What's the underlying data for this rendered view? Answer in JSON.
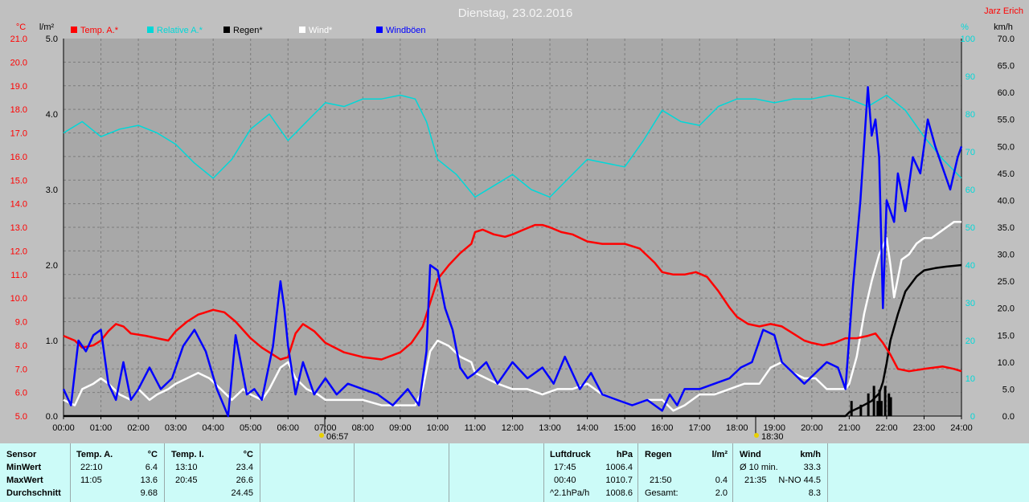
{
  "chart_data": {
    "type": "line",
    "title": "Dienstag, 23.02.2016",
    "author": "Jarz Erich",
    "colors": {
      "temp": "#ff0000",
      "pressure": "#00d8d8",
      "rain": "#000000",
      "wind": "#ffffff",
      "gust": "#0000ff",
      "plot_bg": "#a8a8a8",
      "grid": "#808080"
    },
    "left_axis_temp": {
      "unit": "°C",
      "min": 5.0,
      "max": 21.0,
      "ticks": [
        "5.0",
        "6.0",
        "7.0",
        "8.0",
        "9.0",
        "10.0",
        "11.0",
        "12.0",
        "13.0",
        "14.0",
        "15.0",
        "16.0",
        "17.0",
        "18.0",
        "19.0",
        "20.0",
        "21.0"
      ]
    },
    "left_axis_rain": {
      "unit": "l/m²",
      "min": 0,
      "max": 5.0,
      "ticks": [
        "0.0",
        "1.0",
        "2.0",
        "3.0",
        "4.0",
        "5.0"
      ]
    },
    "right_axis_pressure": {
      "unit": "%",
      "min": 0,
      "max": 100,
      "ticks": [
        "0",
        "10",
        "20",
        "30",
        "40",
        "50",
        "60",
        "70",
        "80",
        "90",
        "100"
      ]
    },
    "right_axis_wind": {
      "unit": "km/h",
      "min": 0,
      "max": 70,
      "ticks": [
        "0.0",
        "5.0",
        "10.0",
        "15.0",
        "20.0",
        "25.0",
        "30.0",
        "35.0",
        "40.0",
        "45.0",
        "50.0",
        "55.0",
        "60.0",
        "65.0",
        "70.0"
      ]
    },
    "x_ticks": [
      "00:00",
      "01:00",
      "02:00",
      "03:00",
      "04:00",
      "05:00",
      "06:00",
      "07:00",
      "08:00",
      "09:00",
      "10:00",
      "11:00",
      "12:00",
      "13:00",
      "14:00",
      "15:00",
      "16:00",
      "17:00",
      "18:00",
      "19:00",
      "20:00",
      "21:00",
      "22:00",
      "23:00",
      "24:00"
    ],
    "sunrise": "06:57",
    "sunset": "18:30",
    "legend": [
      {
        "key": "temp",
        "label": "Temp. A.*"
      },
      {
        "key": "pressure",
        "label": "Relative A.*"
      },
      {
        "key": "rain",
        "label": "Regen*"
      },
      {
        "key": "wind",
        "label": "Wind*"
      },
      {
        "key": "gust",
        "label": "Windböen"
      }
    ],
    "series": [
      {
        "name": "Temp. A.*",
        "key": "temp",
        "axis": "temp",
        "x": [
          0,
          0.3,
          0.5,
          0.8,
          1.0,
          1.2,
          1.4,
          1.6,
          1.8,
          2.2,
          2.5,
          2.8,
          3.0,
          3.3,
          3.6,
          4.0,
          4.3,
          4.6,
          5.0,
          5.3,
          5.6,
          5.8,
          6.0,
          6.2,
          6.4,
          6.7,
          7.0,
          7.5,
          8.0,
          8.5,
          9.0,
          9.3,
          9.6,
          9.8,
          10.0,
          10.3,
          10.6,
          10.9,
          11.0,
          11.2,
          11.5,
          11.8,
          12.0,
          12.3,
          12.6,
          12.8,
          13.0,
          13.3,
          13.6,
          14.0,
          14.4,
          14.8,
          15.0,
          15.4,
          15.8,
          16.0,
          16.3,
          16.6,
          16.9,
          17.2,
          17.5,
          17.8,
          18.0,
          18.3,
          18.6,
          18.9,
          19.2,
          19.5,
          19.8,
          20.0,
          20.3,
          20.6,
          20.9,
          21.2,
          21.5,
          21.7,
          21.9,
          22.1,
          22.3,
          22.6,
          23.0,
          23.5,
          23.8,
          24.0
        ],
        "values": [
          8.4,
          8.2,
          7.9,
          8.0,
          8.2,
          8.6,
          8.9,
          8.8,
          8.5,
          8.4,
          8.3,
          8.2,
          8.6,
          9.0,
          9.3,
          9.5,
          9.4,
          9.0,
          8.3,
          7.9,
          7.6,
          7.4,
          7.5,
          8.5,
          8.9,
          8.6,
          8.1,
          7.7,
          7.5,
          7.4,
          7.7,
          8.1,
          8.8,
          9.8,
          10.8,
          11.4,
          11.9,
          12.3,
          12.8,
          12.9,
          12.7,
          12.6,
          12.7,
          12.9,
          13.1,
          13.1,
          13.0,
          12.8,
          12.7,
          12.4,
          12.3,
          12.3,
          12.3,
          12.1,
          11.5,
          11.1,
          11.0,
          11.0,
          11.1,
          10.9,
          10.3,
          9.6,
          9.2,
          8.9,
          8.8,
          8.9,
          8.8,
          8.5,
          8.2,
          8.1,
          8.0,
          8.1,
          8.3,
          8.3,
          8.4,
          8.5,
          8.1,
          7.6,
          7.0,
          6.9,
          7.0,
          7.1,
          7.0,
          6.9
        ]
      },
      {
        "name": "Relative A.*",
        "key": "pressure",
        "axis": "pressure",
        "x": [
          0,
          0.5,
          1.0,
          1.5,
          2.0,
          2.5,
          3.0,
          3.5,
          4.0,
          4.5,
          5.0,
          5.5,
          6.0,
          6.5,
          7.0,
          7.5,
          8.0,
          8.5,
          9.0,
          9.4,
          9.7,
          10.0,
          10.5,
          11.0,
          11.5,
          12.0,
          12.5,
          13.0,
          13.5,
          14.0,
          14.5,
          15.0,
          15.5,
          16.0,
          16.5,
          17.0,
          17.5,
          18.0,
          18.5,
          19.0,
          19.5,
          20.0,
          20.5,
          21.0,
          21.5,
          22.0,
          22.5,
          23.0,
          23.5,
          24.0
        ],
        "values": [
          75,
          78,
          74,
          76,
          77,
          75,
          72,
          67,
          63,
          68,
          76,
          80,
          73,
          78,
          83,
          82,
          84,
          84,
          85,
          84,
          78,
          68,
          64,
          58,
          61,
          64,
          60,
          58,
          63,
          68,
          67,
          66,
          73,
          81,
          78,
          77,
          82,
          84,
          84,
          83,
          84,
          84,
          85,
          84,
          82,
          85,
          81,
          74,
          68,
          63
        ]
      },
      {
        "name": "Regen*",
        "key": "rain",
        "axis": "rain",
        "x": [
          0,
          20.9,
          21.0,
          21.3,
          21.6,
          21.8,
          21.9,
          22.0,
          22.1,
          22.3,
          22.5,
          22.8,
          23.0,
          23.3,
          23.6,
          24.0
        ],
        "values": [
          0,
          0,
          0.05,
          0.12,
          0.2,
          0.3,
          0.45,
          0.7,
          1.0,
          1.35,
          1.65,
          1.85,
          1.93,
          1.96,
          1.98,
          2.0
        ]
      },
      {
        "name": "Wind*",
        "key": "wind",
        "axis": "wind",
        "x": [
          0,
          0.3,
          0.5,
          0.8,
          1.0,
          1.2,
          1.5,
          1.8,
          2.0,
          2.3,
          2.5,
          2.8,
          3.0,
          3.3,
          3.6,
          3.9,
          4.2,
          4.5,
          4.8,
          5.0,
          5.3,
          5.5,
          5.8,
          6.0,
          6.2,
          6.5,
          6.8,
          7.0,
          7.5,
          8.0,
          8.5,
          9.0,
          9.4,
          9.6,
          9.8,
          10.0,
          10.3,
          10.6,
          10.9,
          11.0,
          11.3,
          11.6,
          12.0,
          12.4,
          12.8,
          13.2,
          13.6,
          14.0,
          14.4,
          14.8,
          15.2,
          15.6,
          16.0,
          16.3,
          16.6,
          17.0,
          17.4,
          17.8,
          18.2,
          18.6,
          18.9,
          19.2,
          19.5,
          19.8,
          20.1,
          20.4,
          20.7,
          20.9,
          21.0,
          21.2,
          21.4,
          21.6,
          21.8,
          22.0,
          22.1,
          22.2,
          22.4,
          22.6,
          22.8,
          23.0,
          23.2,
          23.4,
          23.6,
          23.8,
          24.0
        ],
        "values": [
          3,
          2,
          5,
          6,
          7,
          6,
          4,
          3,
          5,
          3,
          4,
          5,
          6,
          7,
          8,
          7,
          5,
          3,
          5,
          4,
          3,
          5,
          9,
          10,
          7,
          5,
          4,
          3,
          3,
          3,
          2,
          2,
          2,
          5,
          12,
          14,
          13,
          11,
          10,
          8,
          7,
          6,
          5,
          5,
          4,
          5,
          5,
          6,
          4,
          3,
          2,
          3,
          3,
          1,
          2,
          4,
          4,
          5,
          6,
          6,
          9,
          10,
          8,
          7,
          7,
          5,
          5,
          5,
          6,
          11,
          19,
          25,
          30,
          33,
          28,
          22,
          29,
          30,
          32,
          33,
          33,
          34,
          35,
          36,
          36
        ]
      },
      {
        "name": "Windböen",
        "key": "gust",
        "axis": "gust",
        "x": [
          0,
          0.2,
          0.4,
          0.6,
          0.8,
          1.0,
          1.2,
          1.4,
          1.6,
          1.8,
          2.0,
          2.3,
          2.6,
          2.9,
          3.2,
          3.5,
          3.8,
          4.1,
          4.4,
          4.6,
          4.9,
          5.1,
          5.3,
          5.6,
          5.8,
          5.9,
          6.0,
          6.2,
          6.4,
          6.7,
          7.0,
          7.3,
          7.6,
          8.0,
          8.4,
          8.8,
          9.2,
          9.5,
          9.7,
          9.8,
          10.0,
          10.2,
          10.4,
          10.6,
          10.8,
          11.0,
          11.3,
          11.6,
          12.0,
          12.4,
          12.8,
          13.1,
          13.4,
          13.8,
          14.1,
          14.4,
          14.8,
          15.2,
          15.6,
          16.0,
          16.2,
          16.4,
          16.6,
          17.0,
          17.4,
          17.8,
          18.1,
          18.4,
          18.7,
          19.0,
          19.2,
          19.5,
          19.8,
          20.1,
          20.4,
          20.7,
          20.9,
          21.1,
          21.3,
          21.5,
          21.6,
          21.7,
          21.8,
          21.9,
          22.0,
          22.1,
          22.2,
          22.3,
          22.5,
          22.7,
          22.9,
          23.1,
          23.3,
          23.5,
          23.7,
          23.9,
          24.0
        ],
        "values": [
          5,
          2,
          14,
          12,
          15,
          16,
          6,
          3,
          10,
          3,
          5,
          9,
          5,
          7,
          13,
          16,
          12,
          5,
          0,
          15,
          4,
          5,
          3,
          13,
          25,
          20,
          13,
          4,
          10,
          4,
          7,
          4,
          6,
          5,
          4,
          2,
          5,
          2,
          12,
          28,
          27,
          20,
          16,
          9,
          7,
          8,
          10,
          6,
          10,
          7,
          9,
          6,
          11,
          5,
          8,
          4,
          3,
          2,
          3,
          1,
          4,
          2,
          5,
          5,
          6,
          7,
          9,
          10,
          16,
          15,
          10,
          8,
          6,
          8,
          10,
          9,
          5,
          24,
          40,
          61,
          52,
          55,
          48,
          20,
          40,
          38,
          36,
          45,
          38,
          48,
          45,
          55,
          50,
          46,
          42,
          48,
          50
        ]
      }
    ],
    "rain_bars": {
      "x": [
        21.05,
        21.3,
        21.5,
        21.65,
        21.75,
        21.8,
        21.85,
        21.95,
        22.05,
        22.1
      ],
      "values": [
        0.2,
        0.15,
        0.3,
        0.4,
        0.2,
        0.35,
        0.2,
        0.4,
        0.3,
        0.25
      ]
    }
  },
  "table": {
    "sensor": {
      "header": "Sensor",
      "rows": [
        "MinWert",
        "MaxWert",
        "Durchschnitt"
      ]
    },
    "temp_a": {
      "header": "Temp. A.",
      "unit": "°C",
      "times": [
        "22:10",
        "11:05",
        ""
      ],
      "values": [
        "6.4",
        "13.6",
        "9.68"
      ]
    },
    "temp_i": {
      "header": "Temp. I.",
      "unit": "°C",
      "times": [
        "13:10",
        "20:45",
        ""
      ],
      "values": [
        "23.4",
        "26.6",
        "24.45"
      ]
    },
    "pressure": {
      "header": "Luftdruck",
      "unit": "hPa",
      "times": [
        "17:45",
        "00:40",
        "^2.1hPa/h"
      ],
      "values": [
        "1006.4",
        "1010.7",
        "1008.6"
      ]
    },
    "rain": {
      "header": "Regen",
      "unit": "l/m²",
      "times": [
        "",
        "21:50",
        "Gesamt:"
      ],
      "values": [
        "",
        "0.4",
        "2.0"
      ]
    },
    "wind": {
      "header": "Wind",
      "unit": "km/h",
      "times": [
        "Ø 10 min.",
        "21:35",
        ""
      ],
      "values": [
        "33.3",
        "N-NO 44.5",
        "8.3"
      ]
    }
  }
}
